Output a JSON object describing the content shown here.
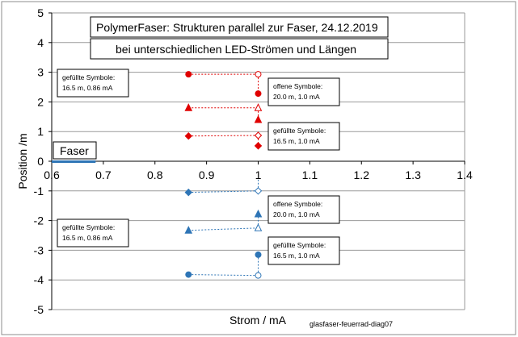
{
  "chart_data": {
    "type": "scatter",
    "title_lines": [
      "PolymerFaser:  Strukturen parallel zur  Faser,  24.12.2019",
      "bei unterschiedlichen LED-Strömen und Längen"
    ],
    "xlabel": "Strom / mA",
    "ylabel": "Position /m",
    "xlim": [
      0.6,
      1.4
    ],
    "ylim": [
      -5,
      5
    ],
    "x_ticks": [
      0.6,
      0.7,
      0.8,
      0.9,
      1.0,
      1.1,
      1.2,
      1.3,
      1.4
    ],
    "x_tick_labels": [
      "0.6",
      "0.7",
      "0.8",
      "0.9",
      "1",
      "1.1",
      "1.2",
      "1.3",
      "1.4"
    ],
    "y_ticks": [
      -5,
      -4,
      -3,
      -2,
      -1,
      0,
      1,
      2,
      3,
      4,
      5
    ],
    "y_tick_labels": [
      "-5",
      "-4",
      "-3",
      "-2",
      "-1",
      "0",
      "1",
      "2",
      "3",
      "4",
      "5"
    ],
    "grid": "horizontal",
    "footer_note": "glasfaser-feuerrad-diag07",
    "fiber_label": "Faser",
    "colors": {
      "red": "#e00000",
      "blue": "#2e75b6",
      "fiber": "#2e75b6"
    },
    "series": [
      {
        "color": "red",
        "marker": "circle",
        "filled": true,
        "points": [
          [
            0.865,
            2.93
          ]
        ]
      },
      {
        "color": "red",
        "marker": "triangle",
        "filled": true,
        "points": [
          [
            0.865,
            1.8
          ]
        ]
      },
      {
        "color": "red",
        "marker": "diamond",
        "filled": true,
        "points": [
          [
            0.865,
            0.85
          ]
        ]
      },
      {
        "color": "red",
        "marker": "circle",
        "filled": false,
        "points": [
          [
            1.0,
            2.93
          ]
        ]
      },
      {
        "color": "red",
        "marker": "triangle",
        "filled": false,
        "points": [
          [
            1.0,
            1.8
          ]
        ]
      },
      {
        "color": "red",
        "marker": "diamond",
        "filled": false,
        "points": [
          [
            1.0,
            0.87
          ]
        ]
      },
      {
        "color": "red",
        "marker": "circle",
        "filled": true,
        "points": [
          [
            1.0,
            2.28
          ]
        ]
      },
      {
        "color": "red",
        "marker": "triangle",
        "filled": true,
        "points": [
          [
            1.0,
            1.4
          ]
        ]
      },
      {
        "color": "red",
        "marker": "diamond",
        "filled": true,
        "points": [
          [
            1.0,
            0.52
          ]
        ]
      },
      {
        "color": "blue",
        "marker": "diamond",
        "filled": true,
        "points": [
          [
            0.865,
            -1.05
          ]
        ]
      },
      {
        "color": "blue",
        "marker": "triangle",
        "filled": true,
        "points": [
          [
            0.865,
            -2.33
          ]
        ]
      },
      {
        "color": "blue",
        "marker": "circle",
        "filled": true,
        "points": [
          [
            0.865,
            -3.82
          ]
        ]
      },
      {
        "color": "blue",
        "marker": "diamond",
        "filled": false,
        "points": [
          [
            1.0,
            -1.0
          ]
        ]
      },
      {
        "color": "blue",
        "marker": "triangle",
        "filled": false,
        "points": [
          [
            1.0,
            -2.25
          ]
        ]
      },
      {
        "color": "blue",
        "marker": "circle",
        "filled": false,
        "points": [
          [
            1.0,
            -3.85
          ]
        ]
      },
      {
        "color": "blue",
        "marker": "triangle",
        "filled": true,
        "points": [
          [
            1.0,
            -1.78
          ]
        ]
      },
      {
        "color": "blue",
        "marker": "circle",
        "filled": true,
        "points": [
          [
            1.0,
            -3.15
          ]
        ]
      }
    ],
    "connectors": [
      {
        "color": "red",
        "from": [
          0.865,
          2.93
        ],
        "to": [
          1.0,
          2.93
        ]
      },
      {
        "color": "red",
        "from": [
          1.0,
          2.93
        ],
        "to": [
          1.0,
          2.28
        ]
      },
      {
        "color": "red",
        "from": [
          0.865,
          1.8
        ],
        "to": [
          1.0,
          1.8
        ]
      },
      {
        "color": "red",
        "from": [
          1.0,
          1.8
        ],
        "to": [
          1.0,
          1.4
        ]
      },
      {
        "color": "red",
        "from": [
          0.865,
          0.85
        ],
        "to": [
          1.0,
          0.87
        ]
      },
      {
        "color": "red",
        "from": [
          1.0,
          0.87
        ],
        "to": [
          1.0,
          0.52
        ]
      },
      {
        "color": "blue",
        "from": [
          0.865,
          -1.05
        ],
        "to": [
          1.0,
          -1.0
        ]
      },
      {
        "color": "blue",
        "from": [
          1.0,
          -1.0
        ],
        "to": [
          1.0,
          -0.62
        ]
      },
      {
        "color": "blue",
        "from": [
          0.865,
          -2.33
        ],
        "to": [
          1.0,
          -2.25
        ]
      },
      {
        "color": "blue",
        "from": [
          1.0,
          -2.25
        ],
        "to": [
          1.0,
          -1.78
        ]
      },
      {
        "color": "blue",
        "from": [
          0.865,
          -3.82
        ],
        "to": [
          1.0,
          -3.85
        ]
      },
      {
        "color": "blue",
        "from": [
          1.0,
          -3.85
        ],
        "to": [
          1.0,
          -3.15
        ]
      }
    ],
    "annotations": [
      {
        "text": [
          "gefüllte Symbole:",
          "16.5 m, 0.86 mA"
        ]
      },
      {
        "text": [
          "offene Symbole:",
          "20.0 m, 1.0 mA"
        ]
      },
      {
        "text": [
          "gefüllte Symbole:",
          "16.5 m, 1.0 mA"
        ]
      },
      {
        "text": [
          "offene Symbole:",
          "20.0 m, 1.0 mA"
        ]
      },
      {
        "text": [
          "gefüllte Symbole:",
          "16.5 m, 0.86 mA"
        ]
      },
      {
        "text": [
          "gefüllte Symbole:",
          "16.5 m, 1.0 mA"
        ]
      }
    ]
  }
}
